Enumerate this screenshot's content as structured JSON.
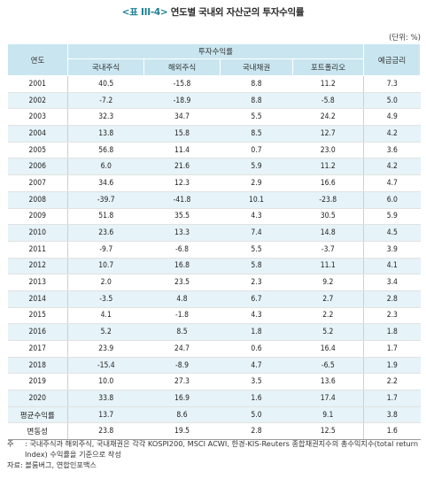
{
  "title": {
    "number": "<표 III-4>",
    "text": "연도별 국내외 자산군의 투자수익률"
  },
  "unit": "(단위: %)",
  "headers": {
    "year": "연도",
    "group": "투자수익률",
    "deposit": "예금금리",
    "columns": [
      "국내주식",
      "해외주식",
      "국내채권",
      "포트폴리오"
    ]
  },
  "rows": [
    {
      "year": "2001",
      "values": [
        "40.5",
        "-15.8",
        "8.8",
        "11.2",
        "7.3"
      ]
    },
    {
      "year": "2002",
      "values": [
        "-7.2",
        "-18.9",
        "8.8",
        "-5.8",
        "5.0"
      ]
    },
    {
      "year": "2003",
      "values": [
        "32.3",
        "34.7",
        "5.5",
        "24.2",
        "4.9"
      ]
    },
    {
      "year": "2004",
      "values": [
        "13.8",
        "15.8",
        "8.5",
        "12.7",
        "4.2"
      ]
    },
    {
      "year": "2005",
      "values": [
        "56.8",
        "11.4",
        "0.7",
        "23.0",
        "3.6"
      ]
    },
    {
      "year": "2006",
      "values": [
        "6.0",
        "21.6",
        "5.9",
        "11.2",
        "4.2"
      ]
    },
    {
      "year": "2007",
      "values": [
        "34.6",
        "12.3",
        "2.9",
        "16.6",
        "4.7"
      ]
    },
    {
      "year": "2008",
      "values": [
        "-39.7",
        "-41.8",
        "10.1",
        "-23.8",
        "6.0"
      ]
    },
    {
      "year": "2009",
      "values": [
        "51.8",
        "35.5",
        "4.3",
        "30.5",
        "5.9"
      ]
    },
    {
      "year": "2010",
      "values": [
        "23.6",
        "13.3",
        "7.4",
        "14.8",
        "4.5"
      ]
    },
    {
      "year": "2011",
      "values": [
        "-9.7",
        "-6.8",
        "5.5",
        "-3.7",
        "3.9"
      ]
    },
    {
      "year": "2012",
      "values": [
        "10.7",
        "16.8",
        "5.8",
        "11.1",
        "4.1"
      ]
    },
    {
      "year": "2013",
      "values": [
        "2.0",
        "23.5",
        "2.3",
        "9.2",
        "3.4"
      ]
    },
    {
      "year": "2014",
      "values": [
        "-3.5",
        "4.8",
        "6.7",
        "2.7",
        "2.8"
      ]
    },
    {
      "year": "2015",
      "values": [
        "4.1",
        "-1.8",
        "4.3",
        "2.2",
        "2.3"
      ]
    },
    {
      "year": "2016",
      "values": [
        "5.2",
        "8.5",
        "1.8",
        "5.2",
        "1.8"
      ]
    },
    {
      "year": "2017",
      "values": [
        "23.9",
        "24.7",
        "0.6",
        "16.4",
        "1.7"
      ]
    },
    {
      "year": "2018",
      "values": [
        "-15.4",
        "-8.9",
        "4.7",
        "-6.5",
        "1.9"
      ]
    },
    {
      "year": "2019",
      "values": [
        "10.0",
        "27.3",
        "3.5",
        "13.6",
        "2.2"
      ]
    },
    {
      "year": "2020",
      "values": [
        "33.8",
        "16.9",
        "1.6",
        "17.4",
        "1.7"
      ]
    }
  ],
  "summary": [
    {
      "label": "평균수익률",
      "values": [
        "13.7",
        "8.6",
        "5.0",
        "9.1",
        "3.8"
      ]
    },
    {
      "label": "변동성",
      "values": [
        "23.8",
        "19.5",
        "2.8",
        "12.5",
        "1.6"
      ]
    }
  ],
  "notes": {
    "note_mark": "주",
    "note_text": ": 국내주식과 해외주식, 국내채권은 각각 KOSPI200, MSCI ACWI, 한경-KIS-Reuters 종합채권지수의 총수익지수(total return Index) 수익률을 기준으로 작성",
    "source": "자료: 블룸버그, 연합인포맥스"
  },
  "colors": {
    "header_bg": "#c9e6f0",
    "stripe_bg": "#e6f3f8",
    "title_number": "#1f7f95"
  }
}
